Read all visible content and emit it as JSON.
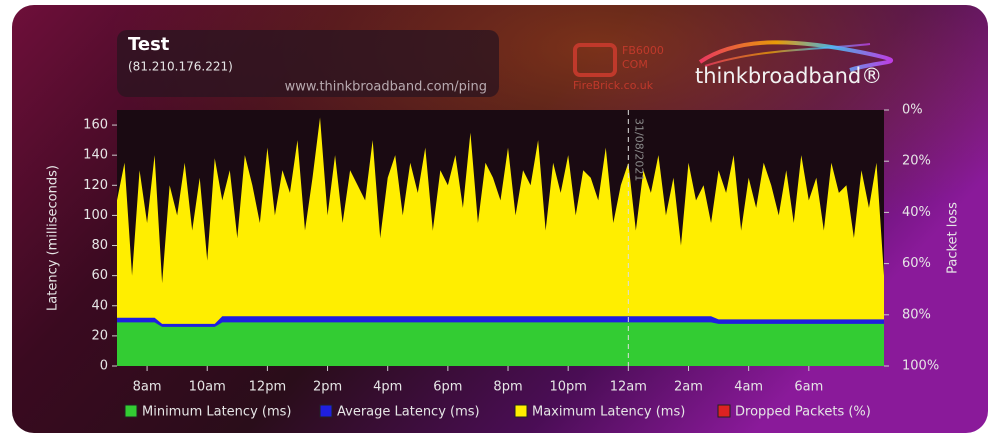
{
  "chart_data": {
    "type": "area",
    "title": "Test",
    "subtitle": "(81.210.176.221)",
    "y_label": "Latency (milliseconds)",
    "y2_label": "Packet loss",
    "xlim": [
      7,
      32.5
    ],
    "xticks": [
      {
        "value": 8,
        "label": "8am"
      },
      {
        "value": 10,
        "label": "10am"
      },
      {
        "value": 12,
        "label": "12pm"
      },
      {
        "value": 14,
        "label": "2pm"
      },
      {
        "value": 16,
        "label": "4pm"
      },
      {
        "value": 18,
        "label": "6pm"
      },
      {
        "value": 20,
        "label": "8pm"
      },
      {
        "value": 22,
        "label": "10pm"
      },
      {
        "value": 24,
        "label": "12am"
      },
      {
        "value": 26,
        "label": "2am"
      },
      {
        "value": 28,
        "label": "4am"
      },
      {
        "value": 30,
        "label": "6am"
      }
    ],
    "ylim": [
      0,
      170
    ],
    "yticks": [
      0,
      20,
      40,
      60,
      80,
      100,
      120,
      140,
      160
    ],
    "y2lim": [
      100,
      0
    ],
    "y2ticks": [
      {
        "value": 0,
        "label": "0%"
      },
      {
        "value": 20,
        "label": "20%"
      },
      {
        "value": 40,
        "label": "40%"
      },
      {
        "value": 60,
        "label": "60%"
      },
      {
        "value": 80,
        "label": "80%"
      },
      {
        "value": 100,
        "label": "100%"
      }
    ],
    "annotations": [
      {
        "x": 24,
        "label": "31/08/2021"
      }
    ],
    "x": [
      7,
      7.25,
      7.5,
      7.75,
      8,
      8.25,
      8.5,
      8.75,
      9,
      9.25,
      9.5,
      9.75,
      10,
      10.25,
      10.5,
      10.75,
      11,
      11.25,
      11.5,
      11.75,
      12,
      12.25,
      12.5,
      12.75,
      13,
      13.25,
      13.5,
      13.75,
      14,
      14.25,
      14.5,
      14.75,
      15,
      15.25,
      15.5,
      15.75,
      16,
      16.25,
      16.5,
      16.75,
      17,
      17.25,
      17.5,
      17.75,
      18,
      18.25,
      18.5,
      18.75,
      19,
      19.25,
      19.5,
      19.75,
      20,
      20.25,
      20.5,
      20.75,
      21,
      21.25,
      21.5,
      21.75,
      22,
      22.25,
      22.5,
      22.75,
      23,
      23.25,
      23.5,
      23.75,
      24,
      24.25,
      24.5,
      24.75,
      25,
      25.25,
      25.5,
      25.75,
      26,
      26.25,
      26.5,
      26.75,
      27,
      27.25,
      27.5,
      27.75,
      28,
      28.25,
      28.5,
      28.75,
      29,
      29.25,
      29.5,
      29.75,
      30,
      30.25,
      30.5,
      30.75,
      31,
      31.25,
      31.5,
      31.75,
      32,
      32.25,
      32.5
    ],
    "series": [
      {
        "name": "Minimum Latency (ms)",
        "color": "#33cc33",
        "values": [
          29,
          29,
          29,
          29,
          29,
          29,
          26,
          26,
          26,
          26,
          26,
          26,
          26,
          26,
          29,
          29,
          29,
          29,
          29,
          29,
          29,
          29,
          29,
          29,
          29,
          29,
          29,
          29,
          29,
          29,
          29,
          29,
          29,
          29,
          29,
          29,
          29,
          29,
          29,
          29,
          29,
          29,
          29,
          29,
          29,
          29,
          29,
          29,
          29,
          29,
          29,
          29,
          29,
          29,
          29,
          29,
          29,
          29,
          29,
          29,
          29,
          29,
          29,
          29,
          29,
          29,
          29,
          29,
          29,
          29,
          29,
          29,
          29,
          29,
          29,
          29,
          29,
          29,
          29,
          29,
          28,
          28,
          28,
          28,
          28,
          28,
          28,
          28,
          28,
          28,
          28,
          28,
          28,
          28,
          28,
          28,
          28,
          28,
          28,
          28,
          28,
          28,
          28
        ]
      },
      {
        "name": "Average Latency (ms)",
        "color": "#1f1fe0",
        "values": [
          32,
          32,
          32,
          32,
          32,
          32,
          28,
          28,
          28,
          28,
          28,
          28,
          28,
          28,
          33,
          33,
          33,
          33,
          33,
          33,
          33,
          33,
          33,
          33,
          33,
          33,
          33,
          33,
          33,
          33,
          33,
          33,
          33,
          33,
          33,
          33,
          33,
          33,
          33,
          33,
          33,
          33,
          33,
          33,
          33,
          33,
          33,
          33,
          33,
          33,
          33,
          33,
          33,
          33,
          33,
          33,
          33,
          33,
          33,
          33,
          33,
          33,
          33,
          33,
          33,
          33,
          33,
          33,
          33,
          33,
          33,
          33,
          33,
          33,
          33,
          33,
          33,
          33,
          33,
          33,
          31,
          31,
          31,
          31,
          31,
          31,
          31,
          31,
          31,
          31,
          31,
          31,
          31,
          31,
          31,
          31,
          31,
          31,
          31,
          31,
          31,
          31,
          31
        ]
      },
      {
        "name": "Maximum Latency (ms)",
        "color": "#ffee00",
        "values": [
          110,
          135,
          60,
          130,
          95,
          140,
          55,
          120,
          100,
          135,
          90,
          125,
          70,
          138,
          110,
          130,
          85,
          140,
          120,
          95,
          145,
          100,
          130,
          115,
          150,
          90,
          125,
          165,
          100,
          140,
          95,
          130,
          120,
          110,
          150,
          85,
          125,
          140,
          100,
          135,
          115,
          145,
          90,
          130,
          120,
          140,
          105,
          155,
          95,
          135,
          125,
          110,
          145,
          100,
          130,
          120,
          150,
          90,
          135,
          115,
          140,
          100,
          130,
          125,
          110,
          145,
          95,
          120,
          135,
          90,
          130,
          115,
          140,
          100,
          125,
          80,
          135,
          110,
          120,
          95,
          130,
          115,
          140,
          90,
          125,
          105,
          135,
          120,
          100,
          130,
          95,
          140,
          110,
          125,
          90,
          135,
          115,
          120,
          85,
          130,
          105,
          135,
          60
        ]
      },
      {
        "name": "Dropped Packets (%)",
        "color": "#dd2222",
        "axis": "y2",
        "values": [
          0,
          0,
          0,
          0,
          0,
          0,
          0,
          0,
          0,
          0,
          0,
          0,
          0,
          0,
          0,
          0,
          0,
          0,
          0,
          0,
          0,
          0,
          0,
          0,
          0,
          0,
          0,
          0,
          0,
          0,
          0,
          0,
          0,
          0,
          0,
          0,
          0,
          0,
          0,
          0,
          0,
          0,
          0,
          0,
          0,
          0,
          0,
          0,
          0,
          0,
          0,
          0,
          0,
          0,
          0,
          0,
          0,
          0,
          0,
          0,
          0,
          0,
          0,
          0,
          0,
          0,
          0,
          0,
          0,
          0,
          0,
          0,
          0,
          0,
          0,
          0,
          0,
          0,
          0,
          0,
          0,
          0,
          0,
          0,
          0,
          0,
          0,
          0,
          0,
          0,
          0,
          0,
          0,
          0,
          0,
          0,
          0,
          0,
          0,
          0,
          0,
          0,
          0
        ]
      }
    ]
  },
  "branding": {
    "url": "www.thinkbroadband.com/ping",
    "firebrick_model": "FB6000",
    "firebrick_com": "COM",
    "firebrick_site": "FireBrick.co.uk",
    "logo": "thinkbroadband®"
  }
}
